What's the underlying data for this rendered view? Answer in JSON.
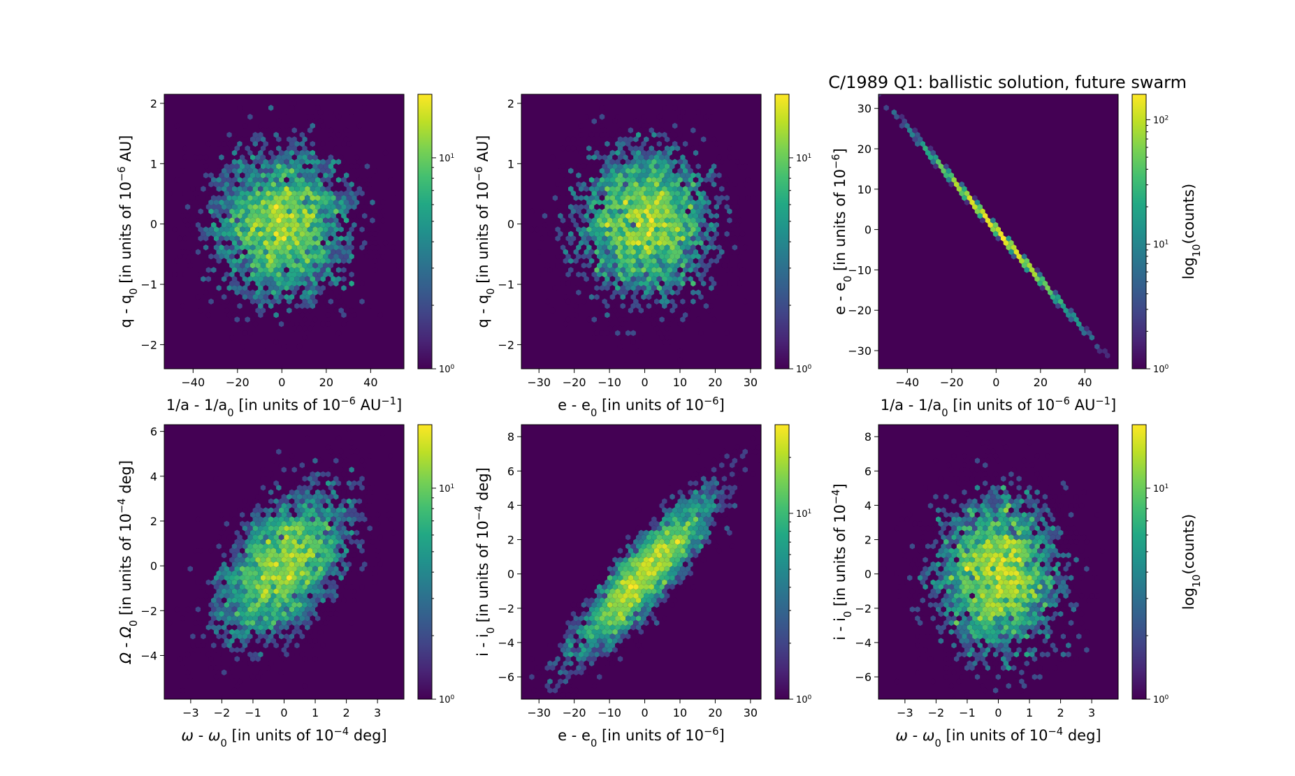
{
  "figure_title": "C/1989 Q1:  ballistic solution, future swarm",
  "chart_data": [
    {
      "type": "heatmap",
      "subtype": "hexbin",
      "xlabel": {
        "main": "1/a - 1/a",
        "sub": "0",
        "pre": " [in units of 10",
        "sup": "−6",
        "post": " AU",
        "sup2": "−1",
        "tail": "]"
      },
      "ylabel": {
        "main": "q - q",
        "sub": "0",
        "pre": " [in units of 10",
        "sup": "−6",
        "post": " AU]"
      },
      "xlim": [
        -53,
        55
      ],
      "ylim": [
        -2.4,
        2.15
      ],
      "xticks": [
        -40,
        -20,
        0,
        20,
        40
      ],
      "xtick_labels": [
        "−40",
        "−20",
        "0",
        "20",
        "40"
      ],
      "yticks": [
        -2,
        -1,
        0,
        1,
        2
      ],
      "ytick_labels": [
        "−2",
        "−1",
        "0",
        "1",
        "2"
      ],
      "distribution": {
        "center": [
          0,
          0
        ],
        "sigma": [
          16,
          0.65
        ],
        "correlation": 0,
        "n_points": 5000,
        "seed": 11
      },
      "colorbar": {
        "scale": "log",
        "min": 1,
        "max": 20,
        "major_ticks": [
          {
            "value": 1,
            "base": "10",
            "exp": "0"
          },
          {
            "value": 10,
            "base": "10",
            "exp": "1"
          }
        ],
        "label": ""
      }
    },
    {
      "type": "heatmap",
      "subtype": "hexbin",
      "xlabel": {
        "main": "e - e",
        "sub": "0",
        "pre": " [in units of 10",
        "sup": "−6",
        "post": "]"
      },
      "ylabel": {
        "main": "q - q",
        "sub": "0",
        "pre": " [in units of 10",
        "sup": "−6",
        "post": " AU]"
      },
      "xlim": [
        -35,
        33
      ],
      "ylim": [
        -2.4,
        2.15
      ],
      "xticks": [
        -30,
        -20,
        -10,
        0,
        10,
        20,
        30
      ],
      "xtick_labels": [
        "−30",
        "−20",
        "−10",
        "0",
        "10",
        "20",
        "30"
      ],
      "yticks": [
        -2,
        -1,
        0,
        1,
        2
      ],
      "ytick_labels": [
        "−2",
        "−1",
        "0",
        "1",
        "2"
      ],
      "distribution": {
        "center": [
          0,
          0
        ],
        "sigma": [
          10,
          0.65
        ],
        "correlation": 0,
        "n_points": 5000,
        "seed": 23
      },
      "colorbar": {
        "scale": "log",
        "min": 1,
        "max": 20,
        "major_ticks": [
          {
            "value": 1,
            "base": "10",
            "exp": "0"
          },
          {
            "value": 10,
            "base": "10",
            "exp": "1"
          }
        ],
        "label": ""
      }
    },
    {
      "type": "heatmap",
      "subtype": "hexbin",
      "xlabel": {
        "main": "1/a - 1/a",
        "sub": "0",
        "pre": " [in units of 10",
        "sup": "−6",
        "post": " AU",
        "sup2": "−1",
        "tail": "]"
      },
      "ylabel": {
        "main": "e - e",
        "sub": "0",
        "pre": " [in units of 10",
        "sup": "−6",
        "post": "]"
      },
      "xlim": [
        -53,
        55
      ],
      "ylim": [
        -34.5,
        33.5
      ],
      "xticks": [
        -40,
        -20,
        0,
        20,
        40
      ],
      "xtick_labels": [
        "−40",
        "−20",
        "0",
        "20",
        "40"
      ],
      "yticks": [
        -30,
        -20,
        -10,
        0,
        10,
        20,
        30
      ],
      "ytick_labels": [
        "−30",
        "−20",
        "−10",
        "0",
        "10",
        "20",
        "30"
      ],
      "distribution": {
        "center": [
          0,
          0
        ],
        "sigma": [
          16,
          0.25
        ],
        "slope": -0.63,
        "n_points": 5000,
        "seed": 37
      },
      "colorbar": {
        "scale": "log",
        "min": 1,
        "max": 160,
        "major_ticks": [
          {
            "value": 1,
            "base": "10",
            "exp": "0"
          },
          {
            "value": 10,
            "base": "10",
            "exp": "1"
          },
          {
            "value": 100,
            "base": "10",
            "exp": "2"
          }
        ],
        "label": {
          "main": "log",
          "sub": "10",
          "post": "(counts)"
        }
      }
    },
    {
      "type": "heatmap",
      "subtype": "hexbin",
      "xlabel": {
        "greek": "ω",
        "main": " - ",
        "greek2": "ω",
        "sub": "0",
        "pre": " [in units of 10",
        "sup": "−4",
        "post": " deg]"
      },
      "ylabel": {
        "greek": "Ω",
        "main": " - ",
        "greek2": "Ω",
        "sub": "0",
        "pre": " [in units of 10",
        "sup": "−4",
        "post": " deg]"
      },
      "xlim": [
        -3.85,
        3.85
      ],
      "ylim": [
        -5.95,
        6.3
      ],
      "xticks": [
        -3,
        -2,
        -1,
        0,
        1,
        2,
        3
      ],
      "xtick_labels": [
        "−3",
        "−2",
        "−1",
        "0",
        "1",
        "2",
        "3"
      ],
      "yticks": [
        -4,
        -2,
        0,
        2,
        4,
        6
      ],
      "ytick_labels": [
        "−4",
        "−2",
        "0",
        "2",
        "4",
        "6"
      ],
      "distribution": {
        "center": [
          0,
          0
        ],
        "sigma": [
          1.05,
          1.75
        ],
        "correlation": 0.48,
        "n_points": 5000,
        "seed": 41
      },
      "colorbar": {
        "scale": "log",
        "min": 1,
        "max": 20,
        "major_ticks": [
          {
            "value": 1,
            "base": "10",
            "exp": "0"
          },
          {
            "value": 10,
            "base": "10",
            "exp": "1"
          }
        ],
        "label": ""
      }
    },
    {
      "type": "heatmap",
      "subtype": "hexbin",
      "xlabel": {
        "main": "e - e",
        "sub": "0",
        "pre": " [in units of 10",
        "sup": "−6",
        "post": "]"
      },
      "ylabel": {
        "main": "i - i",
        "sub": "0",
        "pre": " [in units of 10",
        "sup": "−4",
        "post": " deg]"
      },
      "xlim": [
        -35,
        33
      ],
      "ylim": [
        -7.3,
        8.7
      ],
      "xticks": [
        -30,
        -20,
        -10,
        0,
        10,
        20,
        30
      ],
      "xtick_labels": [
        "−30",
        "−20",
        "−10",
        "0",
        "10",
        "20",
        "30"
      ],
      "yticks": [
        -6,
        -4,
        -2,
        0,
        2,
        4,
        6,
        8
      ],
      "ytick_labels": [
        "−6",
        "−4",
        "−2",
        "0",
        "2",
        "4",
        "6",
        "8"
      ],
      "distribution": {
        "center": [
          0,
          0
        ],
        "sigma": [
          10,
          2.4
        ],
        "correlation": 0.88,
        "n_points": 5000,
        "seed": 53
      },
      "colorbar": {
        "scale": "log",
        "min": 1,
        "max": 30,
        "major_ticks": [
          {
            "value": 1,
            "base": "10",
            "exp": "0"
          },
          {
            "value": 10,
            "base": "10",
            "exp": "1"
          }
        ],
        "label": ""
      }
    },
    {
      "type": "heatmap",
      "subtype": "hexbin",
      "xlabel": {
        "greek": "ω",
        "main": " - ",
        "greek2": "ω",
        "sub": "0",
        "pre": " [in units of 10",
        "sup": "−4",
        "post": " deg]"
      },
      "ylabel": {
        "main": "i - i",
        "sub": "0",
        "pre": " [in units of 10",
        "sup": "−4",
        "post": "]"
      },
      "xlim": [
        -3.85,
        3.85
      ],
      "ylim": [
        -7.3,
        8.7
      ],
      "xticks": [
        -3,
        -2,
        -1,
        0,
        1,
        2,
        3
      ],
      "xtick_labels": [
        "−3",
        "−2",
        "−1",
        "0",
        "1",
        "2",
        "3"
      ],
      "yticks": [
        -6,
        -4,
        -2,
        0,
        2,
        4,
        6,
        8
      ],
      "ytick_labels": [
        "−6",
        "−4",
        "−2",
        "0",
        "2",
        "4",
        "6",
        "8"
      ],
      "distribution": {
        "center": [
          0,
          0
        ],
        "sigma": [
          1.05,
          2.4
        ],
        "correlation": 0,
        "n_points": 5000,
        "seed": 67
      },
      "colorbar": {
        "scale": "log",
        "min": 1,
        "max": 20,
        "major_ticks": [
          {
            "value": 1,
            "base": "10",
            "exp": "0"
          },
          {
            "value": 10,
            "base": "10",
            "exp": "1"
          }
        ],
        "label": {
          "main": "log",
          "sub": "10",
          "post": "(counts)"
        }
      }
    }
  ],
  "colors": {
    "background": "#ffffff",
    "panel_bg": "#440154"
  }
}
